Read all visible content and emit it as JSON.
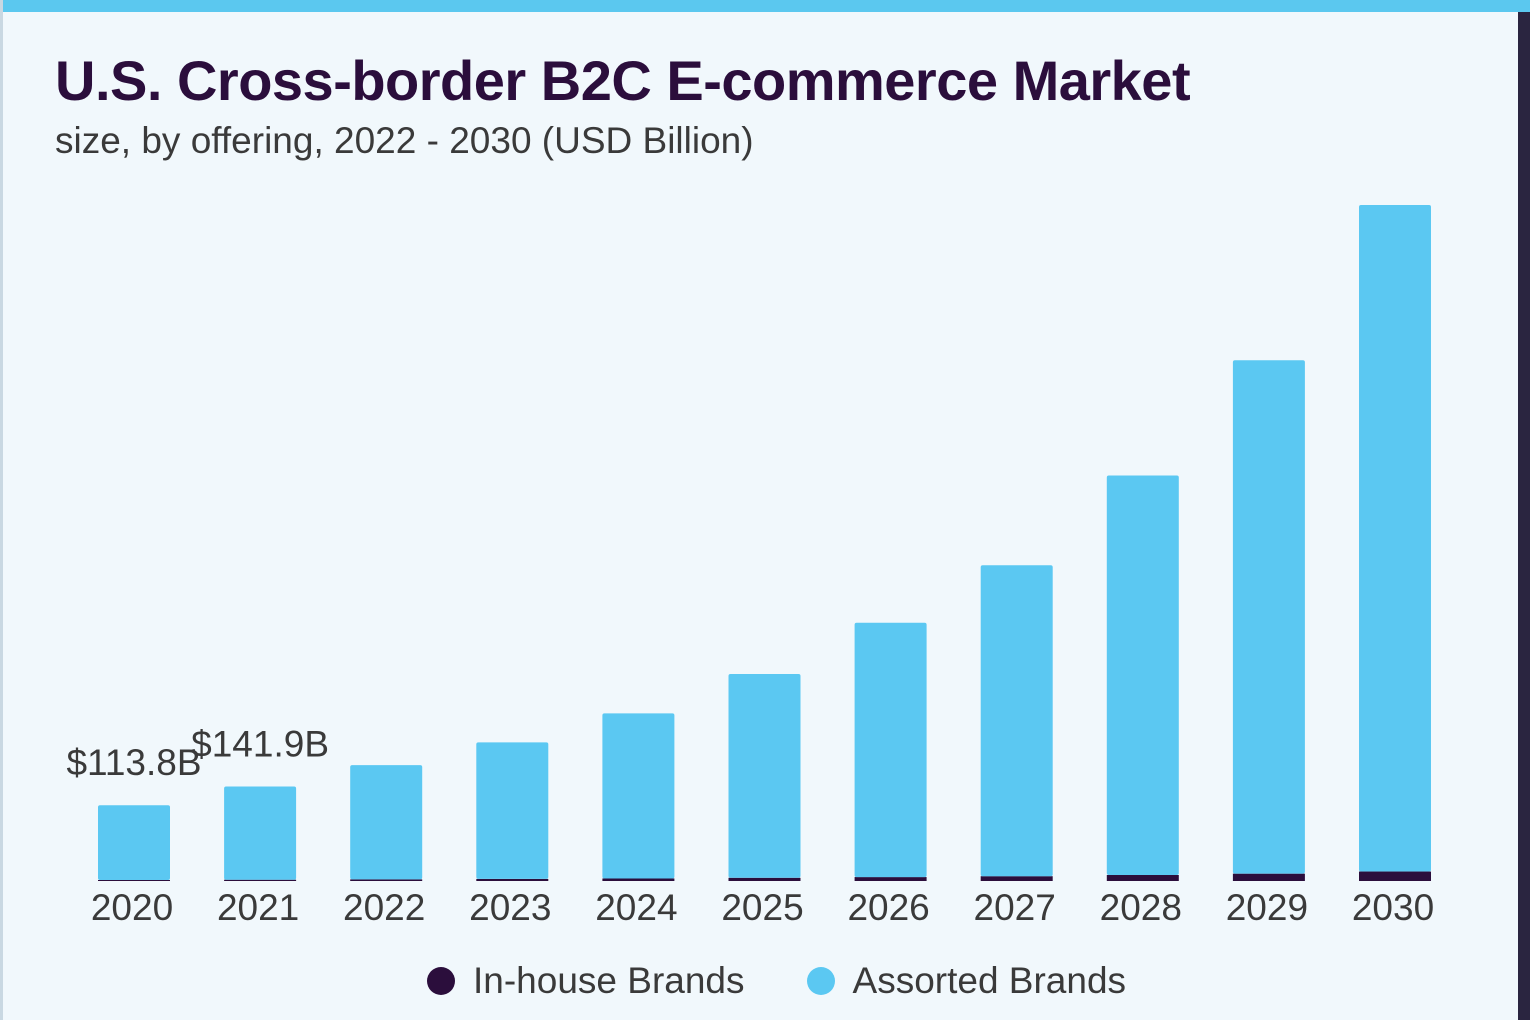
{
  "chart_data": {
    "type": "bar",
    "stacked": true,
    "title": "U.S. Cross-border B2C E-commerce Market",
    "subtitle": "size, by offering, 2022 - 2030 (USD Billion)",
    "categories": [
      "2020",
      "2021",
      "2022",
      "2023",
      "2024",
      "2025",
      "2026",
      "2027",
      "2028",
      "2029",
      "2030"
    ],
    "series": [
      {
        "name": "In-house Brands",
        "color": "#2b0e3c",
        "values": [
          1.5,
          1.9,
          2.4,
          3.1,
          3.8,
          4.8,
          5.9,
          7.2,
          9.0,
          11.0,
          14.2
        ]
      },
      {
        "name": "Assorted Brands",
        "color": "#5bc8f2",
        "values": [
          112.3,
          140.0,
          171.6,
          205.0,
          248.0,
          306.0,
          382.0,
          467.0,
          600.0,
          771.0,
          1001.0
        ]
      }
    ],
    "data_labels": [
      {
        "category": "2020",
        "text": "$113.8B"
      },
      {
        "category": "2021",
        "text": "$141.9B"
      }
    ],
    "ylim": [
      0,
      1015.2
    ],
    "grid": false,
    "legend_position": "bottom"
  }
}
